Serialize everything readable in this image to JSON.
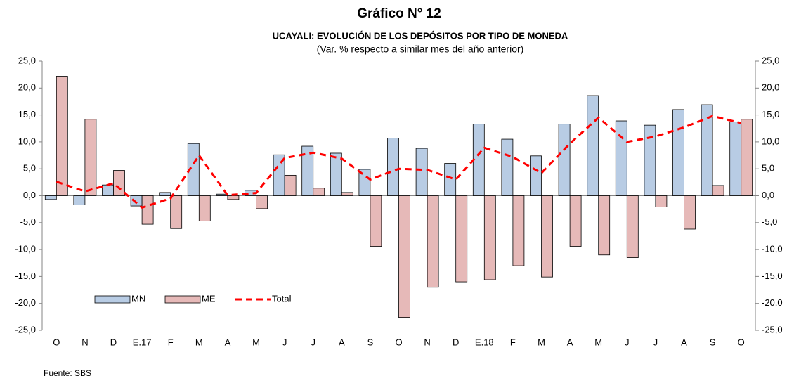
{
  "chart_data": {
    "type": "bar_line",
    "title": "Gráfico N° 12",
    "subtitles": [
      "UCAYALI: EVOLUCIÓN DE LOS DEPÓSITOS POR TIPO DE MONEDA",
      "(Var. % respecto a similar mes del año anterior)"
    ],
    "source": "Fuente: SBS",
    "categories": [
      "O",
      "N",
      "D",
      "E.17",
      "F",
      "M",
      "A",
      "M",
      "J",
      "J",
      "A",
      "S",
      "O",
      "N",
      "D",
      "E.18",
      "F",
      "M",
      "A",
      "M",
      "J",
      "J",
      "A",
      "S",
      "O"
    ],
    "series": [
      {
        "name": "MN",
        "type": "bar",
        "color": "#b8cce4",
        "values": [
          -0.7,
          -1.7,
          2.0,
          -1.9,
          0.6,
          9.7,
          0.3,
          1.0,
          7.6,
          9.2,
          7.9,
          4.9,
          10.7,
          8.8,
          6.0,
          13.3,
          10.5,
          7.4,
          13.3,
          18.6,
          13.9,
          13.1,
          16.0,
          16.9,
          13.7
        ]
      },
      {
        "name": "ME",
        "type": "bar",
        "color": "#e6b9b8",
        "values": [
          22.2,
          14.2,
          4.7,
          -5.3,
          -6.1,
          -4.7,
          -0.7,
          -2.4,
          3.8,
          1.4,
          0.6,
          -9.4,
          -22.6,
          -17.0,
          -16.0,
          -15.6,
          -13.0,
          -15.1,
          -9.4,
          -11.0,
          -11.5,
          -2.1,
          -6.2,
          1.9,
          14.2
        ]
      },
      {
        "name": "Total",
        "type": "line",
        "color": "#ff0000",
        "values": [
          2.6,
          0.8,
          2.3,
          -2.2,
          -0.5,
          7.5,
          0.1,
          0.5,
          7.0,
          8.0,
          6.9,
          3.0,
          5.0,
          4.8,
          3.0,
          8.9,
          7.2,
          4.2,
          9.7,
          14.5,
          10.0,
          11.0,
          12.7,
          14.8,
          13.5
        ]
      }
    ],
    "ylim": [
      -25,
      25
    ],
    "yticks": [
      {
        "value": -25,
        "label": "-25,0"
      },
      {
        "value": -20,
        "label": "-20,0"
      },
      {
        "value": -15,
        "label": "-15,0"
      },
      {
        "value": -10,
        "label": "-10,0"
      },
      {
        "value": -5,
        "label": "-5,0"
      },
      {
        "value": 0,
        "label": "0,0"
      },
      {
        "value": 5,
        "label": "5,0"
      },
      {
        "value": 10,
        "label": "10,0"
      },
      {
        "value": 15,
        "label": "15,0"
      },
      {
        "value": 20,
        "label": "20,0"
      },
      {
        "value": 25,
        "label": "25,0"
      }
    ],
    "y2lim": [
      -25,
      25
    ],
    "y2ticks": [
      {
        "value": -25,
        "label": "-25,0"
      },
      {
        "value": -20,
        "label": "-20,0"
      },
      {
        "value": -15,
        "label": "-15,0"
      },
      {
        "value": -10,
        "label": "-10,0"
      },
      {
        "value": -5,
        "label": "-5,0"
      },
      {
        "value": 0,
        "label": "0,0"
      },
      {
        "value": 5,
        "label": "5,0"
      },
      {
        "value": 10,
        "label": "10,0"
      },
      {
        "value": 15,
        "label": "15,0"
      },
      {
        "value": 20,
        "label": "20,0"
      },
      {
        "value": 25,
        "label": "25,0"
      }
    ],
    "grid": false
  }
}
